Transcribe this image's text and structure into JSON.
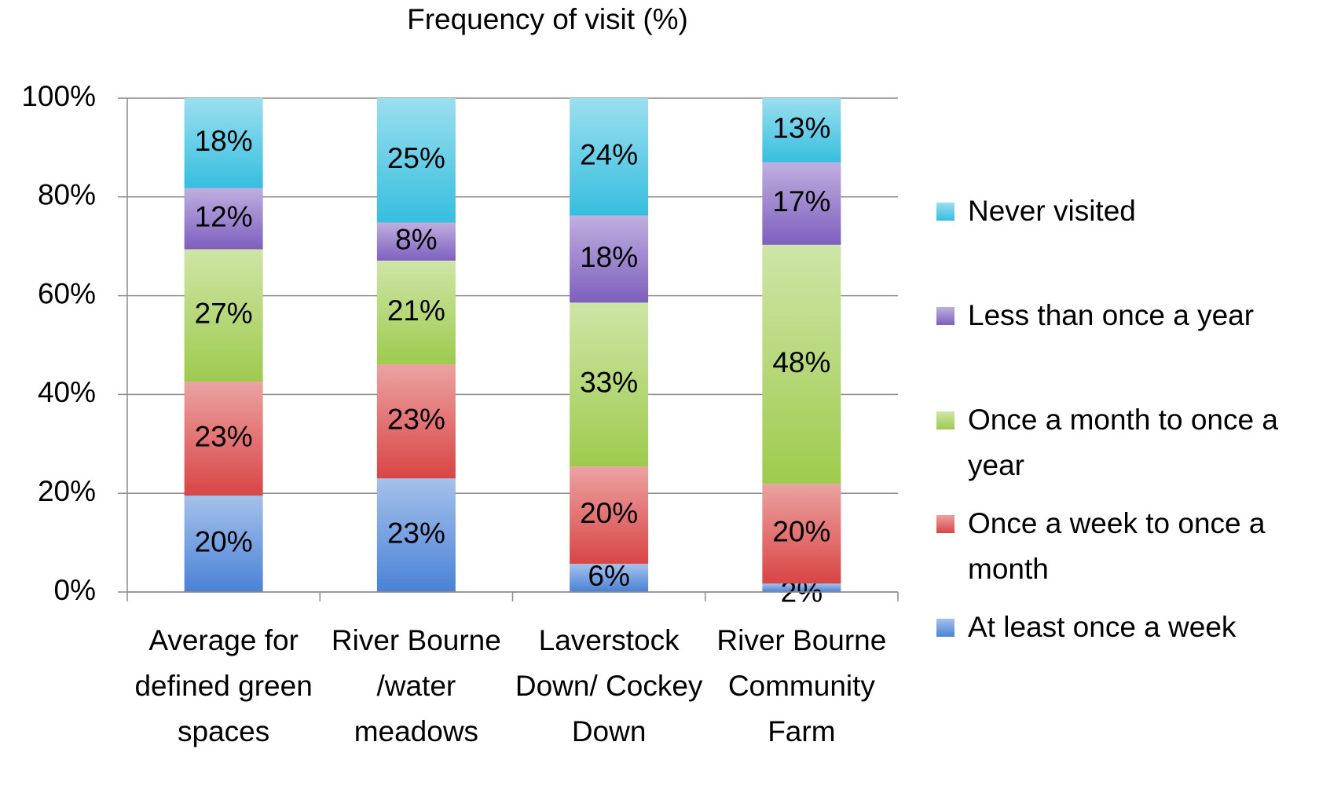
{
  "chart_data": {
    "type": "stacked_bar",
    "title": "Frequency of visit (%)",
    "categories": [
      "Average for defined green spaces",
      "River Bourne /water meadows",
      "Laverstock Down/ Cockey Down",
      "River Bourne Community Farm"
    ],
    "series": [
      {
        "name": "At least once a week",
        "color": "#4a82d6",
        "values": [
          19.5,
          23.0,
          5.7,
          1.7
        ],
        "value_labels": [
          "20%",
          "23%",
          "6%",
          "2%"
        ]
      },
      {
        "name": "Once a week to once a month",
        "color": "#d94545",
        "values": [
          23.1,
          23.1,
          19.7,
          20.2
        ],
        "value_labels": [
          "23%",
          "23%",
          "20%",
          "20%"
        ]
      },
      {
        "name": "Once a month to once a year",
        "color": "#9ecb4e",
        "values": [
          26.8,
          21.0,
          33.2,
          48.4
        ],
        "value_labels": [
          "27%",
          "21%",
          "33%",
          "48%"
        ]
      },
      {
        "name": "Less than once a year",
        "color": "#7e5fbf",
        "values": [
          12.4,
          7.7,
          17.6,
          16.7
        ],
        "value_labels": [
          "12%",
          "8%",
          "18%",
          "17%"
        ]
      },
      {
        "name": "Never visited",
        "color": "#36bedf",
        "values": [
          18.2,
          25.2,
          23.8,
          13.0
        ],
        "value_labels": [
          "18%",
          "25%",
          "24%",
          "13%"
        ]
      }
    ],
    "ylim": [
      0,
      100
    ],
    "yticks": [
      {
        "value": 0,
        "label": "0%"
      },
      {
        "value": 20,
        "label": "20%"
      },
      {
        "value": 40,
        "label": "40%"
      },
      {
        "value": 60,
        "label": "60%"
      },
      {
        "value": 80,
        "label": "80%"
      },
      {
        "value": 100,
        "label": "100%"
      }
    ],
    "grid": true,
    "legend": "right"
  }
}
